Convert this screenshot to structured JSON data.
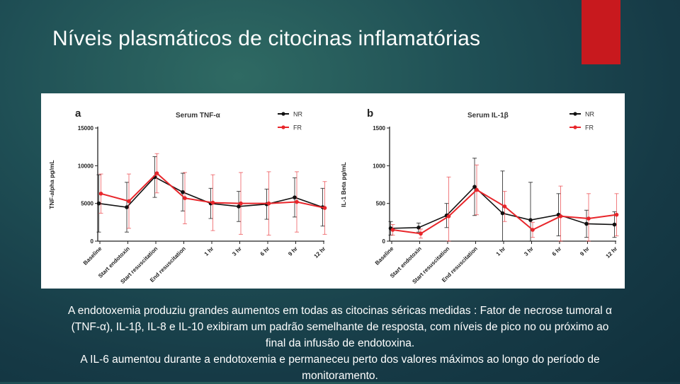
{
  "slide": {
    "title": "Níveis plasmáticos de citocinas inflamatórias",
    "accent_color": "#c8191e",
    "caption_lines": [
      "A endotoxemia produziu grandes aumentos em todas as citocinas séricas medidas : Fator de necrose tumoral α",
      "(TNF-α), IL-1β, IL-8 e IL-10 exibiram um padrão semelhante de resposta, com níveis de pico no ou próximo ao",
      "final da infusão de endotoxina.",
      "A IL-6 aumentou durante a endotoxemia e permaneceu perto dos valores máximos ao longo do período de",
      "monitoramento."
    ]
  },
  "chart_data": [
    {
      "type": "line",
      "panel_label": "a",
      "title": "Serum TNF-α",
      "xlabel": "",
      "ylabel": "TNF-alpha pg/mL",
      "categories": [
        "Baseline",
        "Start endotoxin",
        "Start resuscitation",
        "End resuscitation",
        "1 hr",
        "3 hr",
        "6 hr",
        "9 hr",
        "12 hr"
      ],
      "ylim": [
        0,
        15000
      ],
      "yticks": [
        0,
        5000,
        10000,
        15000
      ],
      "legend_position": "top-right",
      "grid": false,
      "series": [
        {
          "name": "NR",
          "color": "#111111",
          "values": [
            5000,
            4500,
            8500,
            6500,
            5000,
            4600,
            4900,
            5800,
            4500
          ],
          "err": [
            3800,
            3300,
            2700,
            2500,
            2000,
            2000,
            2000,
            2600,
            2500
          ]
        },
        {
          "name": "FR",
          "color": "#e8262b",
          "values": [
            6300,
            5300,
            9000,
            5700,
            5100,
            5000,
            5000,
            5200,
            4400
          ],
          "err": [
            2600,
            3600,
            2600,
            3400,
            3700,
            4100,
            4200,
            4000,
            3500
          ]
        }
      ]
    },
    {
      "type": "line",
      "panel_label": "b",
      "title": "Serum IL-1β",
      "xlabel": "",
      "ylabel": "IL-1 Beta pg/mL",
      "categories": [
        "Baseline",
        "Start endotoxin",
        "Start resuscitation",
        "End resuscitation",
        "1 hr",
        "3 hr",
        "6 hr",
        "9 hr",
        "12 hr"
      ],
      "ylim": [
        0,
        1500
      ],
      "yticks": [
        0,
        500,
        1000,
        1500
      ],
      "legend_position": "top-right",
      "grid": false,
      "series": [
        {
          "name": "NR",
          "color": "#111111",
          "values": [
            170,
            180,
            340,
            720,
            370,
            280,
            350,
            230,
            220
          ],
          "err": [
            90,
            60,
            160,
            380,
            560,
            500,
            280,
            180,
            170
          ]
        },
        {
          "name": "FR",
          "color": "#e8262b",
          "values": [
            150,
            100,
            330,
            680,
            460,
            150,
            330,
            300,
            350
          ],
          "err": [
            70,
            60,
            520,
            330,
            200,
            100,
            400,
            330,
            280
          ]
        }
      ]
    }
  ]
}
